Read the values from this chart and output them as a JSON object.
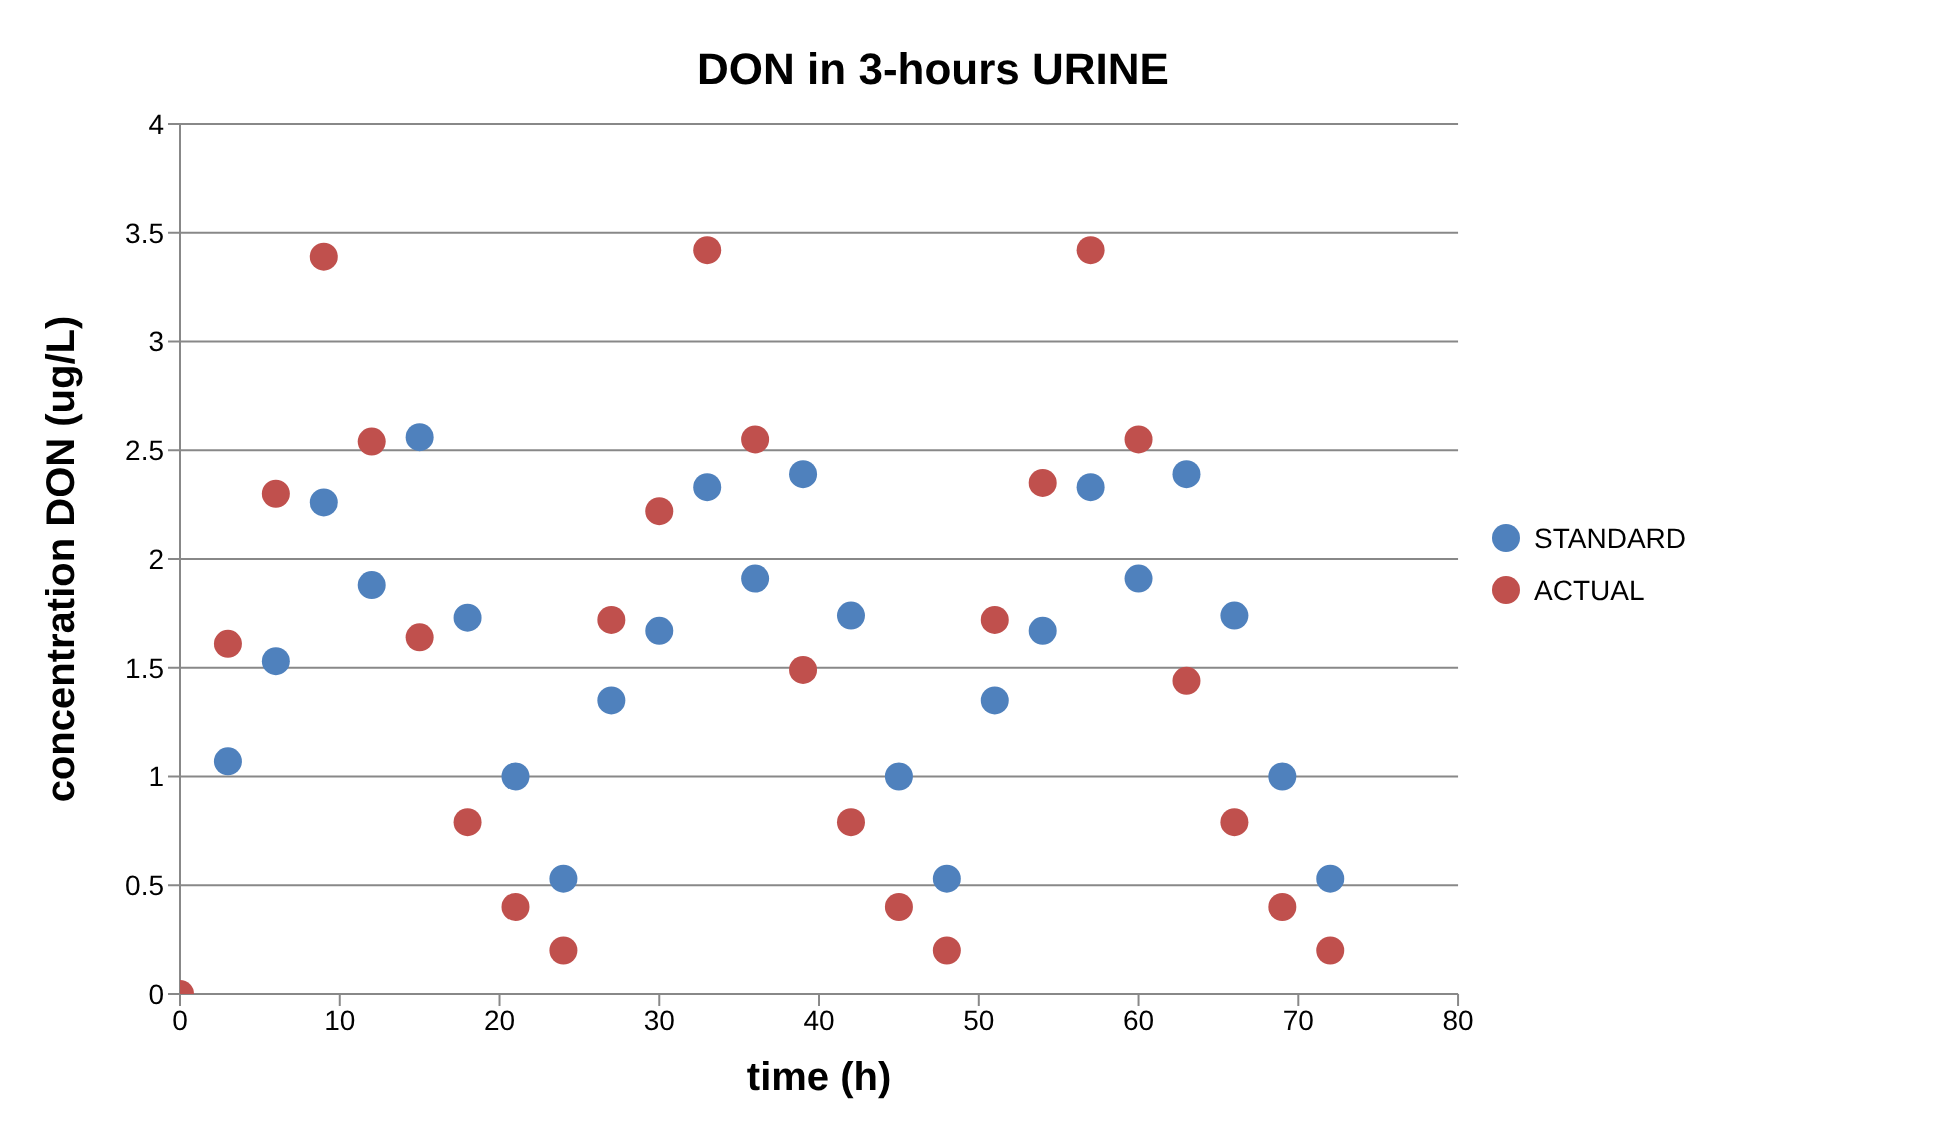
{
  "chart_data": {
    "type": "scatter",
    "title": "DON in 3-hours URINE",
    "xlabel": "time (h)",
    "ylabel": "concentration DON (ug/L)",
    "series": [
      {
        "name": "STANDARD",
        "color": "#4f81bd",
        "x": [
          3,
          6,
          9,
          12,
          15,
          18,
          21,
          24,
          27,
          30,
          33,
          36,
          39,
          42,
          45,
          48,
          51,
          54,
          57,
          60,
          63,
          66,
          69,
          72
        ],
        "values": [
          1.07,
          1.53,
          2.26,
          1.88,
          2.56,
          1.73,
          1.0,
          0.53,
          1.35,
          1.67,
          2.33,
          1.91,
          2.39,
          1.74,
          1.0,
          0.53,
          1.35,
          1.67,
          2.33,
          1.91,
          2.39,
          1.74,
          1.0,
          0.53
        ]
      },
      {
        "name": "ACTUAL",
        "color": "#c0504d",
        "x": [
          0,
          3,
          6,
          9,
          12,
          15,
          18,
          21,
          24,
          27,
          30,
          33,
          36,
          39,
          42,
          45,
          48,
          51,
          54,
          57,
          60,
          63,
          66,
          69,
          72
        ],
        "values": [
          0,
          1.61,
          2.3,
          3.39,
          2.54,
          1.64,
          0.79,
          0.4,
          0.2,
          1.72,
          2.22,
          3.42,
          2.55,
          1.49,
          0.79,
          0.4,
          0.2,
          1.72,
          2.35,
          3.42,
          2.55,
          1.44,
          0.79,
          0.4,
          0.2
        ]
      }
    ],
    "xlim": [
      0,
      80
    ],
    "xticks": [
      0,
      10,
      20,
      30,
      40,
      50,
      60,
      70,
      80
    ],
    "ylim": [
      0,
      4
    ],
    "yticks": [
      0,
      0.5,
      1,
      1.5,
      2,
      2.5,
      3,
      3.5,
      4
    ],
    "grid": "y",
    "legend": "right",
    "marker": "circle"
  }
}
